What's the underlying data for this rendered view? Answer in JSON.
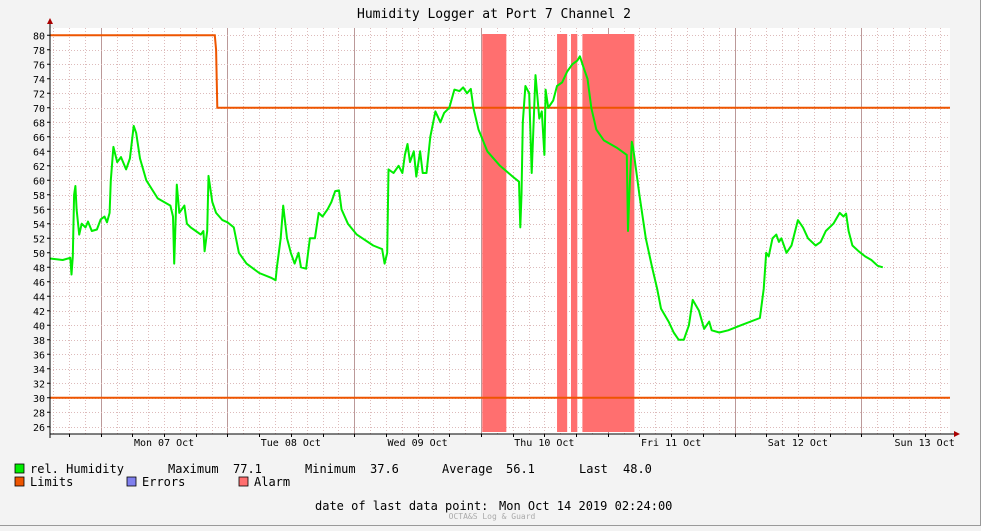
{
  "title": "Humidity Logger at Port 7 Channel 2",
  "legend": {
    "humidity_label": "rel. Humidity",
    "limits_label": "Limits",
    "errors_label": "Errors",
    "alarm_label": "Alarm",
    "maximum_label": "Maximum",
    "maximum_value": "77.1",
    "minimum_label": "Minimum",
    "minimum_value": "37.6",
    "average_label": "Average",
    "average_value": "56.1",
    "last_label": "Last",
    "last_value": "48.0"
  },
  "footer": {
    "date_label": "date of last data point:",
    "date_value": "Mon Oct 14 2019 02:24:00",
    "brand": "OCTA&S Log & Guard"
  },
  "colors": {
    "humidity": "#00ee00",
    "limits": "#ee5500",
    "errors": "#7f7fee",
    "alarm": "#ff6f6f",
    "grid_minor": "#ddbbbb",
    "grid_major": "#bb9999",
    "plot_bg": "#ffffff",
    "background": "#f3f3f3"
  },
  "chart_data": {
    "type": "line",
    "title": "Humidity Logger at Port 7 Channel 2",
    "x_tick_labels": [
      "Mon 07 Oct",
      "Tue 08 Oct",
      "Wed 09 Oct",
      "Thu 10 Oct",
      "Fri 11 Oct",
      "Sat 12 Oct",
      "Sun 13 Oct"
    ],
    "x_range_days": [
      6.6,
      13.7
    ],
    "y_range": [
      25,
      81
    ],
    "y_ticks": [
      26,
      28,
      30,
      32,
      34,
      36,
      38,
      40,
      42,
      44,
      46,
      48,
      50,
      52,
      54,
      56,
      58,
      60,
      62,
      64,
      66,
      68,
      70,
      72,
      74,
      76,
      78,
      80
    ],
    "grid": true,
    "upper_limit": [
      {
        "day": 6.6,
        "value": 80
      },
      {
        "day": 7.9,
        "value": 80
      },
      {
        "day": 7.91,
        "value": 78
      },
      {
        "day": 7.92,
        "value": 70
      },
      {
        "day": 13.7,
        "value": 70
      }
    ],
    "lower_limit": 30,
    "alarm_intervals": [
      [
        10.01,
        10.2
      ],
      [
        10.6,
        10.68
      ],
      [
        10.71,
        10.76
      ],
      [
        10.8,
        11.21
      ]
    ],
    "series": [
      {
        "name": "rel. Humidity",
        "points": [
          [
            6.6,
            49.2
          ],
          [
            6.7,
            49
          ],
          [
            6.76,
            49.3
          ],
          [
            6.77,
            47
          ],
          [
            6.78,
            49.5
          ],
          [
            6.79,
            58
          ],
          [
            6.8,
            59.2
          ],
          [
            6.81,
            56
          ],
          [
            6.83,
            52.5
          ],
          [
            6.85,
            54
          ],
          [
            6.88,
            53.5
          ],
          [
            6.9,
            54.3
          ],
          [
            6.93,
            53
          ],
          [
            6.97,
            53.2
          ],
          [
            7.0,
            54.6
          ],
          [
            7.03,
            55
          ],
          [
            7.05,
            54.2
          ],
          [
            7.07,
            55.5
          ],
          [
            7.08,
            60
          ],
          [
            7.1,
            64.6
          ],
          [
            7.13,
            62.5
          ],
          [
            7.16,
            63.2
          ],
          [
            7.2,
            61.5
          ],
          [
            7.23,
            63
          ],
          [
            7.26,
            67.5
          ],
          [
            7.28,
            66.5
          ],
          [
            7.31,
            63
          ],
          [
            7.36,
            60
          ],
          [
            7.45,
            57.5
          ],
          [
            7.55,
            56.5
          ],
          [
            7.57,
            55
          ],
          [
            7.58,
            48.5
          ],
          [
            7.6,
            59.4
          ],
          [
            7.62,
            55.5
          ],
          [
            7.66,
            56.5
          ],
          [
            7.68,
            54
          ],
          [
            7.71,
            53.5
          ],
          [
            7.75,
            53
          ],
          [
            7.79,
            52.5
          ],
          [
            7.81,
            53
          ],
          [
            7.82,
            50.2
          ],
          [
            7.84,
            53
          ],
          [
            7.85,
            60.6
          ],
          [
            7.88,
            57
          ],
          [
            7.91,
            55.5
          ],
          [
            7.96,
            54.5
          ],
          [
            8.0,
            54.2
          ],
          [
            8.05,
            53.5
          ],
          [
            8.09,
            50
          ],
          [
            8.15,
            48.5
          ],
          [
            8.25,
            47.2
          ],
          [
            8.35,
            46.5
          ],
          [
            8.38,
            46.2
          ],
          [
            8.39,
            48
          ],
          [
            8.42,
            52
          ],
          [
            8.44,
            56.5
          ],
          [
            8.47,
            52
          ],
          [
            8.5,
            50
          ],
          [
            8.53,
            48.5
          ],
          [
            8.56,
            50
          ],
          [
            8.58,
            48
          ],
          [
            8.62,
            47.8
          ],
          [
            8.65,
            52
          ],
          [
            8.69,
            52
          ],
          [
            8.72,
            55.5
          ],
          [
            8.75,
            55
          ],
          [
            8.79,
            56
          ],
          [
            8.82,
            57
          ],
          [
            8.85,
            58.5
          ],
          [
            8.88,
            58.6
          ],
          [
            8.9,
            56
          ],
          [
            8.95,
            54
          ],
          [
            9.02,
            52.5
          ],
          [
            9.15,
            51
          ],
          [
            9.22,
            50.5
          ],
          [
            9.24,
            48.5
          ],
          [
            9.26,
            50
          ],
          [
            9.27,
            61.5
          ],
          [
            9.31,
            61
          ],
          [
            9.35,
            62
          ],
          [
            9.38,
            61
          ],
          [
            9.4,
            63.5
          ],
          [
            9.42,
            65
          ],
          [
            9.44,
            62.5
          ],
          [
            9.47,
            64
          ],
          [
            9.49,
            60.5
          ],
          [
            9.52,
            64
          ],
          [
            9.54,
            61
          ],
          [
            9.57,
            61
          ],
          [
            9.6,
            66
          ],
          [
            9.64,
            69.5
          ],
          [
            9.68,
            68
          ],
          [
            9.71,
            69.3
          ],
          [
            9.75,
            70
          ],
          [
            9.79,
            72.5
          ],
          [
            9.83,
            72.3
          ],
          [
            9.86,
            72.8
          ],
          [
            9.89,
            72
          ],
          [
            9.92,
            72.6
          ],
          [
            9.94,
            70
          ],
          [
            9.98,
            67
          ],
          [
            10.05,
            64
          ],
          [
            10.15,
            62
          ],
          [
            10.25,
            60.5
          ],
          [
            10.3,
            59.8
          ],
          [
            10.31,
            53.5
          ],
          [
            10.32,
            58
          ],
          [
            10.33,
            68
          ],
          [
            10.35,
            73
          ],
          [
            10.38,
            72
          ],
          [
            10.4,
            61
          ],
          [
            10.42,
            70
          ],
          [
            10.43,
            74.5
          ],
          [
            10.46,
            68.5
          ],
          [
            10.48,
            69.5
          ],
          [
            10.5,
            63.5
          ],
          [
            10.51,
            72.5
          ],
          [
            10.53,
            70
          ],
          [
            10.57,
            71
          ],
          [
            10.6,
            73
          ],
          [
            10.64,
            73.5
          ],
          [
            10.68,
            75
          ],
          [
            10.72,
            76
          ],
          [
            10.76,
            76.5
          ],
          [
            10.78,
            77.1
          ],
          [
            10.81,
            75.5
          ],
          [
            10.84,
            74
          ],
          [
            10.87,
            70
          ],
          [
            10.91,
            67
          ],
          [
            10.97,
            65.5
          ],
          [
            11.07,
            64.5
          ],
          [
            11.15,
            63.5
          ],
          [
            11.16,
            53
          ],
          [
            11.17,
            58
          ],
          [
            11.19,
            65.3
          ],
          [
            11.2,
            64.5
          ],
          [
            11.25,
            58
          ],
          [
            11.3,
            52
          ],
          [
            11.35,
            48
          ],
          [
            11.39,
            45
          ],
          [
            11.42,
            42.3
          ],
          [
            11.48,
            40.5
          ],
          [
            11.52,
            39
          ],
          [
            11.56,
            38
          ],
          [
            11.6,
            38
          ],
          [
            11.64,
            40
          ],
          [
            11.67,
            43.5
          ],
          [
            11.72,
            42
          ],
          [
            11.76,
            39.5
          ],
          [
            11.8,
            40.5
          ],
          [
            11.82,
            39.3
          ],
          [
            11.88,
            39
          ],
          [
            11.95,
            39.3
          ],
          [
            12.05,
            40
          ],
          [
            12.2,
            41
          ],
          [
            12.23,
            45
          ],
          [
            12.25,
            50
          ],
          [
            12.27,
            49.5
          ],
          [
            12.3,
            52
          ],
          [
            12.33,
            52.5
          ],
          [
            12.35,
            51.5
          ],
          [
            12.37,
            52
          ],
          [
            12.41,
            50
          ],
          [
            12.45,
            51
          ],
          [
            12.5,
            54.5
          ],
          [
            12.54,
            53.5
          ],
          [
            12.58,
            52
          ],
          [
            12.64,
            51
          ],
          [
            12.68,
            51.5
          ],
          [
            12.72,
            53
          ],
          [
            12.78,
            54
          ],
          [
            12.83,
            55.5
          ],
          [
            12.86,
            55
          ],
          [
            12.88,
            55.4
          ],
          [
            12.9,
            53
          ],
          [
            12.93,
            51
          ],
          [
            12.98,
            50.2
          ],
          [
            13.03,
            49.5
          ],
          [
            13.08,
            49
          ],
          [
            13.13,
            48.2
          ],
          [
            13.17,
            48
          ]
        ]
      }
    ]
  }
}
